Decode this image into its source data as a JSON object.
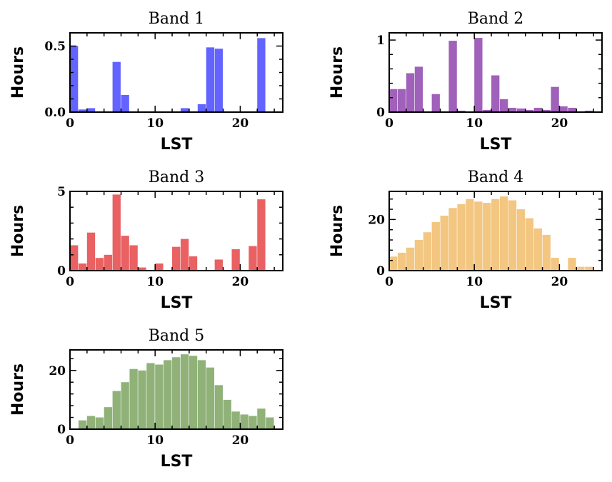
{
  "chart_data": [
    {
      "type": "bar",
      "title": "Band 1",
      "xlabel": "LST",
      "ylabel": "Hours",
      "color": "#5b5bff",
      "xlim": [
        0,
        25
      ],
      "ylim": [
        0,
        0.6
      ],
      "xticks": [
        "0",
        "10",
        "20"
      ],
      "yticks": [
        "0.0",
        "0.5"
      ],
      "bin_width": 1,
      "bin_starts": [
        0,
        1,
        2,
        3,
        4,
        5,
        6,
        7,
        8,
        9,
        10,
        11,
        12,
        13,
        14,
        15,
        16,
        17,
        18,
        19,
        20,
        21,
        22,
        23
      ],
      "values": [
        0.5,
        0.02,
        0.03,
        0,
        0,
        0.38,
        0.13,
        0,
        0,
        0,
        0,
        0,
        0,
        0.03,
        0,
        0.06,
        0.49,
        0.48,
        0,
        0,
        0,
        0,
        0.56,
        0
      ]
    },
    {
      "type": "bar",
      "title": "Band 2",
      "xlabel": "LST",
      "ylabel": "Hours",
      "color": "#9b59b6",
      "xlim": [
        0,
        25
      ],
      "ylim": [
        0,
        1.1
      ],
      "xticks": [
        "0",
        "10",
        "20"
      ],
      "yticks": [
        "0",
        "1"
      ],
      "bin_width": 1,
      "bin_starts": [
        0,
        1,
        2,
        3,
        4,
        5,
        6,
        7,
        8,
        9,
        10,
        11,
        12,
        13,
        14,
        15,
        16,
        17,
        18,
        19,
        20,
        21,
        22,
        23
      ],
      "values": [
        0.32,
        0.32,
        0.54,
        0.63,
        0,
        0.25,
        0,
        0.99,
        0.02,
        0,
        1.03,
        0.03,
        0.51,
        0.18,
        0.06,
        0.05,
        0.03,
        0.06,
        0.03,
        0.35,
        0.08,
        0.06,
        0.01,
        0.02
      ]
    },
    {
      "type": "bar",
      "title": "Band 3",
      "xlabel": "LST",
      "ylabel": "Hours",
      "color": "#e8595a",
      "xlim": [
        0,
        25
      ],
      "ylim": [
        0,
        5
      ],
      "xticks": [
        "0",
        "10",
        "20"
      ],
      "yticks": [
        "0",
        "5"
      ],
      "bin_width": 1,
      "bin_starts": [
        0,
        1,
        2,
        3,
        4,
        5,
        6,
        7,
        8,
        9,
        10,
        11,
        12,
        13,
        14,
        15,
        16,
        17,
        18,
        19,
        20,
        21,
        22,
        23
      ],
      "values": [
        1.6,
        0.45,
        2.4,
        0.8,
        1.0,
        4.8,
        2.2,
        1.6,
        0.2,
        0,
        0.45,
        0,
        1.5,
        2.0,
        0.9,
        0,
        0,
        0.7,
        0,
        1.35,
        0,
        1.55,
        4.5,
        0
      ]
    },
    {
      "type": "bar",
      "title": "Band 4",
      "xlabel": "LST",
      "ylabel": "Hours",
      "color": "#f2c37a",
      "xlim": [
        0,
        25
      ],
      "ylim": [
        0,
        31
      ],
      "xticks": [
        "0",
        "10",
        "20"
      ],
      "yticks": [
        "0",
        "20"
      ],
      "bin_width": 1,
      "bin_starts": [
        0,
        1,
        2,
        3,
        4,
        5,
        6,
        7,
        8,
        9,
        10,
        11,
        12,
        13,
        14,
        15,
        16,
        17,
        18,
        19,
        20,
        21,
        22,
        23
      ],
      "values": [
        5.5,
        7,
        9,
        12,
        15,
        19,
        21.5,
        24.5,
        26,
        28,
        27,
        26.5,
        28,
        29,
        27.5,
        24,
        20.5,
        16.5,
        14,
        5,
        0,
        5,
        1.5,
        1.5
      ]
    },
    {
      "type": "bar",
      "title": "Band 5",
      "xlabel": "LST",
      "ylabel": "Hours",
      "color": "#8aae72",
      "xlim": [
        0,
        25
      ],
      "ylim": [
        0,
        27
      ],
      "xticks": [
        "0",
        "10",
        "20"
      ],
      "yticks": [
        "0",
        "20"
      ],
      "bin_width": 1,
      "bin_starts": [
        1,
        2,
        3,
        4,
        5,
        6,
        7,
        8,
        9,
        10,
        11,
        12,
        13,
        14,
        15,
        16,
        17,
        18,
        19,
        20,
        21,
        22,
        23
      ],
      "values": [
        3,
        4.5,
        4,
        7.5,
        13,
        16,
        20.5,
        20,
        22.5,
        22,
        23.5,
        24.5,
        25.5,
        25,
        23.5,
        21,
        15,
        10,
        6,
        5,
        4.5,
        7,
        4
      ]
    }
  ]
}
